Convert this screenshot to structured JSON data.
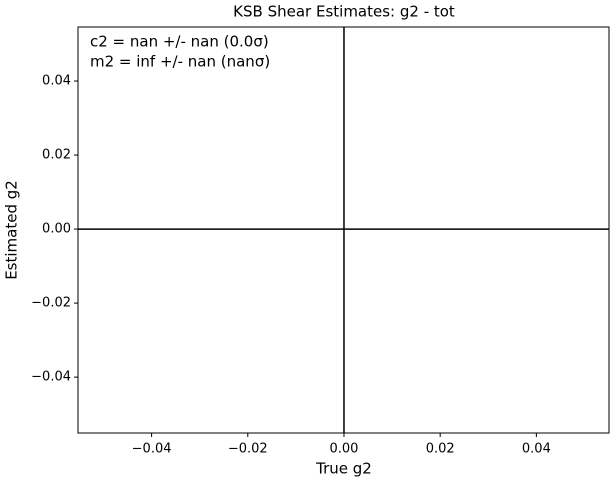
{
  "chart_data": {
    "type": "scatter",
    "title": "KSB Shear Estimates: g2  - tot",
    "x_label": "True g2",
    "y_label": "Estimated g2",
    "annotations": [
      "c2 = nan +/- nan (0.0σ)",
      "m2 = inf +/- nan (nanσ)"
    ],
    "xlim": [
      -0.0553,
      0.0551
    ],
    "ylim": [
      -0.0551,
      0.0546
    ],
    "xticks": [
      {
        "value": -0.04,
        "label": "−0.04"
      },
      {
        "value": -0.02,
        "label": "−0.02"
      },
      {
        "value": 0,
        "label": "0.00"
      },
      0.02,
      0.04
    ],
    "yticks": [
      {
        "value": -0.04,
        "label": "−0.04"
      },
      {
        "value": -0.02,
        "label": "−0.02"
      },
      {
        "value": 0,
        "label": "0.00"
      },
      0.02,
      0.04
    ],
    "axhline": 0,
    "axvline": 0,
    "line_color": "#000000",
    "grid": false
  }
}
